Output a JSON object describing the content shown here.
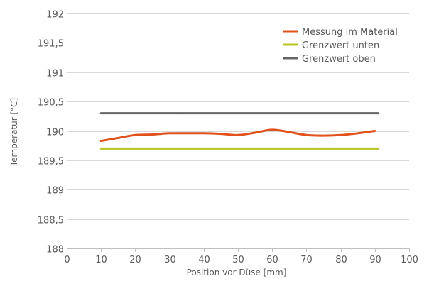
{
  "chart_data": {
    "type": "line",
    "xlabel": "Position vor Düse [mm]",
    "ylabel": "Temperatur [°C]",
    "xlim": [
      0,
      100
    ],
    "ylim": [
      188,
      192
    ],
    "x_ticks": [
      0,
      10,
      20,
      30,
      40,
      50,
      60,
      70,
      80,
      90,
      100
    ],
    "y_ticks": [
      188,
      188.5,
      189,
      189.5,
      190,
      190.5,
      191,
      191.5,
      192
    ],
    "y_tick_labels": [
      "188",
      "188,5",
      "189",
      "189,5",
      "190",
      "190,5",
      "191",
      "191,5",
      "192"
    ],
    "grid": "horizontal",
    "legend_position": "top-right",
    "series": [
      {
        "name": "Messung im Material",
        "color": "#e0511c",
        "x": [
          10,
          15,
          20,
          25,
          30,
          35,
          40,
          45,
          50,
          55,
          60,
          65,
          70,
          75,
          80,
          85,
          90
        ],
        "y": [
          189.83,
          189.88,
          189.93,
          189.94,
          189.96,
          189.96,
          189.96,
          189.95,
          189.93,
          189.97,
          190.02,
          189.98,
          189.93,
          189.92,
          189.93,
          189.96,
          190.0
        ]
      },
      {
        "name": "Grenzwert unten",
        "color": "#b8c422",
        "x": [
          10,
          91
        ],
        "y": [
          189.7,
          189.7
        ]
      },
      {
        "name": "Grenzwert oben",
        "color": "#666666",
        "x": [
          10,
          91
        ],
        "y": [
          190.3,
          190.3
        ]
      }
    ]
  }
}
